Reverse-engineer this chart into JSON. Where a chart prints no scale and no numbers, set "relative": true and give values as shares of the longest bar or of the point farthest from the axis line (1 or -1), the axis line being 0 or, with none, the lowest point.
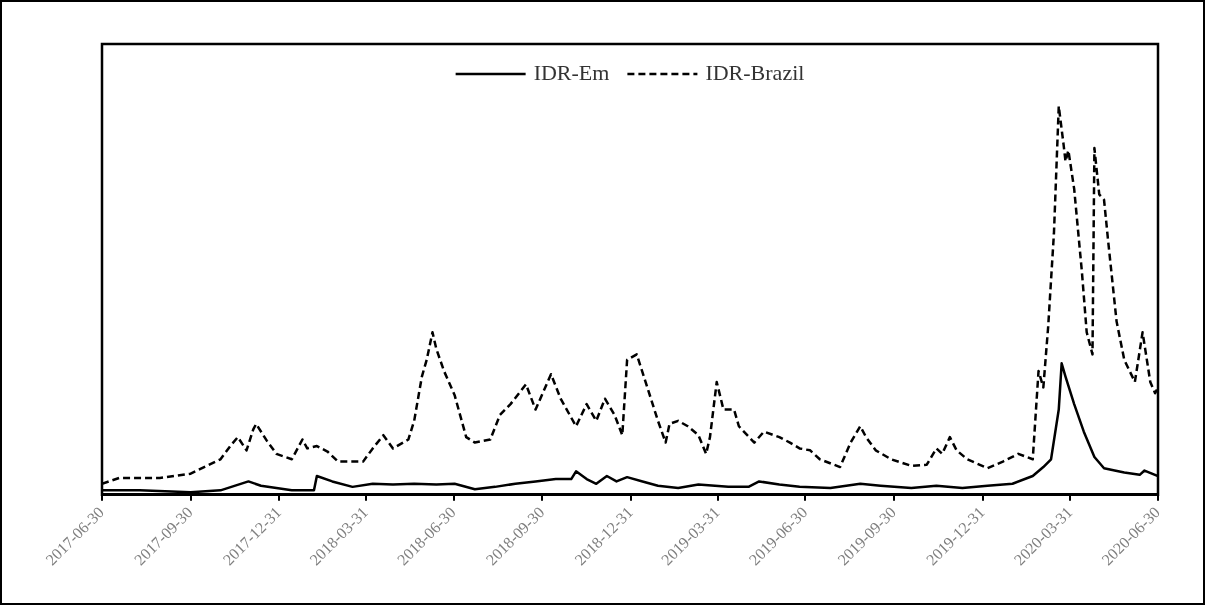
{
  "chart_data": {
    "type": "line",
    "relative": true,
    "legend": "top",
    "marker": "none",
    "grid": false,
    "xlim": [
      "2017-06-30",
      "2020-06-30"
    ],
    "xticks": [
      "2017-06-30",
      "2017-09-30",
      "2017-12-31",
      "2018-03-31",
      "2018-06-30",
      "2018-09-30",
      "2018-12-31",
      "2019-03-31",
      "2019-06-30",
      "2019-09-30",
      "2019-12-31",
      "2020-03-31",
      "2020-06-30"
    ],
    "series": [
      {
        "name": "IDR-Em",
        "color": "#000000",
        "line_style": "solid",
        "x": [
          "2017-06-30",
          "2017-08-08",
          "2017-09-30",
          "2017-10-31",
          "2017-11-29",
          "2017-12-12",
          "2018-01-13",
          "2018-02-05",
          "2018-02-08",
          "2018-02-24",
          "2018-03-17",
          "2018-04-07",
          "2018-04-28",
          "2018-05-20",
          "2018-06-12",
          "2018-07-01",
          "2018-07-22",
          "2018-08-12",
          "2018-09-02",
          "2018-09-23",
          "2018-10-14",
          "2018-10-30",
          "2018-11-04",
          "2018-11-15",
          "2018-11-25",
          "2018-12-06",
          "2018-12-16",
          "2018-12-27",
          "2019-01-12",
          "2019-01-28",
          "2019-02-18",
          "2019-03-11",
          "2019-04-11",
          "2019-05-02",
          "2019-05-13",
          "2019-06-03",
          "2019-06-24",
          "2019-07-26",
          "2019-08-26",
          "2019-09-16",
          "2019-10-18",
          "2019-11-13",
          "2019-12-10",
          "2020-01-05",
          "2020-01-31",
          "2020-02-21",
          "2020-03-03",
          "2020-03-11",
          "2020-03-19",
          "2020-03-22",
          "2020-03-26",
          "2020-04-04",
          "2020-04-14",
          "2020-04-25",
          "2020-05-05",
          "2020-05-16",
          "2020-05-26",
          "2020-06-11",
          "2020-06-16",
          "2020-06-30"
        ],
        "values": [
          0.011,
          0.011,
          0.006,
          0.011,
          0.034,
          0.023,
          0.011,
          0.011,
          0.048,
          0.034,
          0.02,
          0.028,
          0.026,
          0.028,
          0.026,
          0.028,
          0.014,
          0.02,
          0.028,
          0.034,
          0.04,
          0.04,
          0.06,
          0.04,
          0.028,
          0.048,
          0.034,
          0.045,
          0.034,
          0.023,
          0.017,
          0.026,
          0.02,
          0.02,
          0.034,
          0.026,
          0.02,
          0.017,
          0.028,
          0.023,
          0.017,
          0.023,
          0.017,
          0.023,
          0.028,
          0.048,
          0.071,
          0.091,
          0.219,
          0.338,
          0.304,
          0.233,
          0.162,
          0.097,
          0.068,
          0.062,
          0.057,
          0.051,
          0.062,
          0.048
        ]
      },
      {
        "name": "IDR-Brazil",
        "color": "#000000",
        "line_style": "dashed",
        "x": [
          "2017-06-30",
          "2017-07-18",
          "2017-08-29",
          "2017-09-30",
          "2017-10-31",
          "2017-11-11",
          "2017-11-18",
          "2017-11-27",
          "2017-12-04",
          "2017-12-07",
          "2017-12-18",
          "2017-12-28",
          "2018-01-13",
          "2018-01-24",
          "2018-01-29",
          "2018-02-08",
          "2018-02-19",
          "2018-03-02",
          "2018-03-28",
          "2018-04-07",
          "2018-04-18",
          "2018-04-28",
          "2018-05-14",
          "2018-05-20",
          "2018-05-28",
          "2018-06-02",
          "2018-06-08",
          "2018-06-12",
          "2018-06-20",
          "2018-07-01",
          "2018-07-13",
          "2018-07-22",
          "2018-08-07",
          "2018-08-17",
          "2018-08-28",
          "2018-09-13",
          "2018-09-23",
          "2018-10-09",
          "2018-10-19",
          "2018-11-04",
          "2018-11-15",
          "2018-11-25",
          "2018-12-04",
          "2018-12-14",
          "2018-12-22",
          "2018-12-27",
          "2019-01-06",
          "2019-01-17",
          "2019-01-28",
          "2019-02-05",
          "2019-02-09",
          "2019-02-18",
          "2019-02-28",
          "2019-03-11",
          "2019-03-19",
          "2019-03-23",
          "2019-03-30",
          "2019-04-06",
          "2019-04-17",
          "2019-04-22",
          "2019-05-08",
          "2019-05-18",
          "2019-06-03",
          "2019-06-14",
          "2019-06-24",
          "2019-07-05",
          "2019-07-15",
          "2019-08-05",
          "2019-08-16",
          "2019-08-26",
          "2019-09-01",
          "2019-09-11",
          "2019-09-27",
          "2019-10-18",
          "2019-11-03",
          "2019-11-13",
          "2019-11-19",
          "2019-11-27",
          "2019-12-04",
          "2019-12-15",
          "2020-01-05",
          "2020-01-21",
          "2020-02-06",
          "2020-02-21",
          "2020-02-27",
          "2020-03-03",
          "2020-03-08",
          "2020-03-14",
          "2020-03-19",
          "2020-03-24",
          "2020-03-26",
          "2020-03-29",
          "2020-04-04",
          "2020-04-12",
          "2020-04-17",
          "2020-04-23",
          "2020-04-25",
          "2020-04-30",
          "2020-05-05",
          "2020-05-09",
          "2020-05-18",
          "2020-05-26",
          "2020-06-06",
          "2020-06-14",
          "2020-06-22",
          "2020-06-27",
          "2020-06-30"
        ],
        "values": [
          0.028,
          0.043,
          0.043,
          0.054,
          0.091,
          0.128,
          0.148,
          0.114,
          0.168,
          0.182,
          0.139,
          0.105,
          0.091,
          0.142,
          0.119,
          0.125,
          0.111,
          0.085,
          0.085,
          0.119,
          0.153,
          0.119,
          0.142,
          0.19,
          0.304,
          0.347,
          0.418,
          0.375,
          0.318,
          0.256,
          0.148,
          0.134,
          0.142,
          0.205,
          0.233,
          0.284,
          0.219,
          0.31,
          0.247,
          0.176,
          0.233,
          0.19,
          0.247,
          0.205,
          0.153,
          0.347,
          0.361,
          0.276,
          0.19,
          0.134,
          0.182,
          0.19,
          0.176,
          0.153,
          0.105,
          0.148,
          0.29,
          0.219,
          0.219,
          0.176,
          0.134,
          0.162,
          0.148,
          0.134,
          0.119,
          0.114,
          0.091,
          0.071,
          0.134,
          0.176,
          0.148,
          0.114,
          0.091,
          0.074,
          0.077,
          0.119,
          0.105,
          0.148,
          0.114,
          0.091,
          0.068,
          0.085,
          0.105,
          0.091,
          0.318,
          0.276,
          0.432,
          0.673,
          1,
          0.901,
          0.858,
          0.886,
          0.787,
          0.574,
          0.418,
          0.361,
          0.892,
          0.773,
          0.759,
          0.659,
          0.446,
          0.347,
          0.29,
          0.418,
          0.29,
          0.261,
          0.276
        ]
      }
    ]
  }
}
